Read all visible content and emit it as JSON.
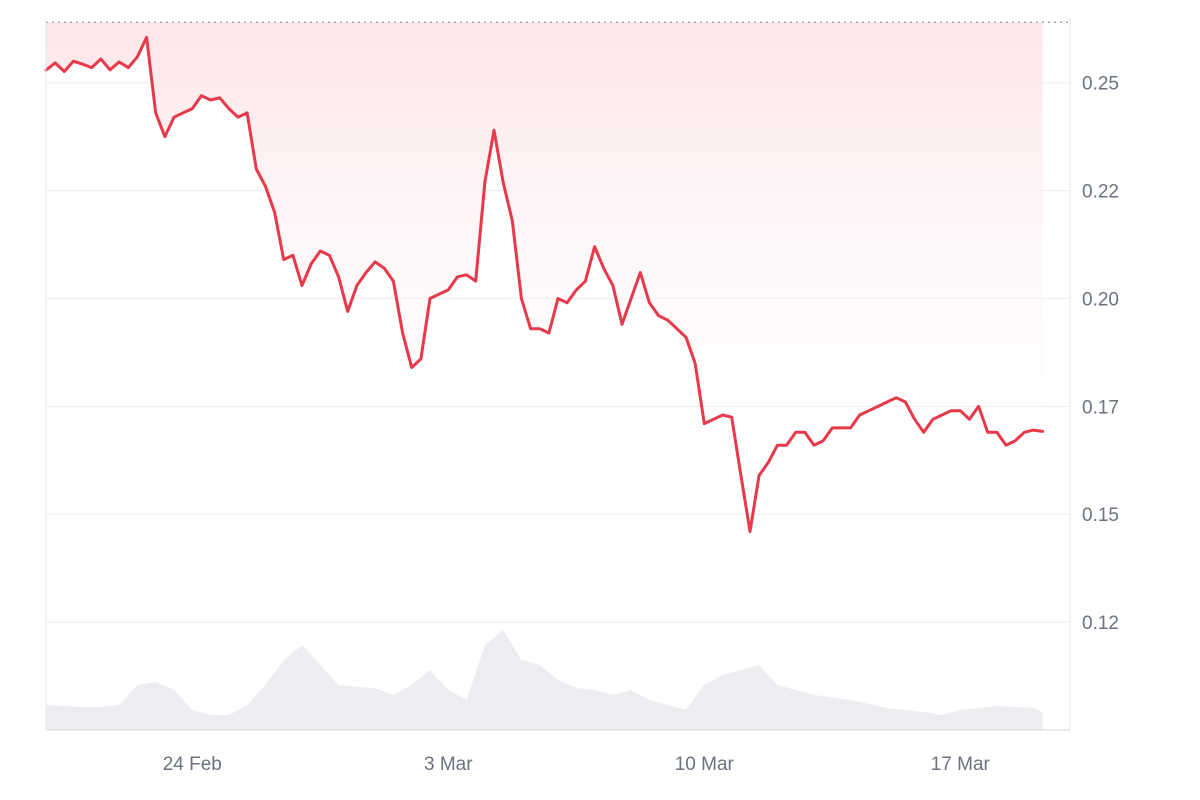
{
  "chart_data": {
    "type": "line",
    "title": "",
    "xlabel": "",
    "ylabel": "",
    "x_ticks": [
      "24 Feb",
      "3 Mar",
      "10 Mar",
      "17 Mar"
    ],
    "y_ticks": [
      "0.25",
      "0.22",
      "0.20",
      "0.17",
      "0.15",
      "0.12"
    ],
    "y_tick_values": [
      0.25,
      0.225,
      0.2,
      0.175,
      0.15,
      0.125
    ],
    "ylim": [
      0.1,
      0.265
    ],
    "xlim": [
      "2025-02-20",
      "2025-03-20"
    ],
    "grid": true,
    "reference_line": 0.264,
    "colors": {
      "line": "#e8394a",
      "fill": "#fde4e7",
      "volume": "#e5e7eb",
      "grid": "#eceef1"
    },
    "series": [
      {
        "values": [
          [
            "2025-02-20T00:00",
            0.2529
          ],
          [
            "2025-02-20T06:00",
            0.2546
          ],
          [
            "2025-02-20T12:00",
            0.2526
          ],
          [
            "2025-02-20T18:00",
            0.255
          ],
          [
            "2025-02-21T00:00",
            0.2543
          ],
          [
            "2025-02-21T06:00",
            0.2535
          ],
          [
            "2025-02-21T12:00",
            0.2555
          ],
          [
            "2025-02-21T18:00",
            0.253
          ],
          [
            "2025-02-22T00:00",
            0.2548
          ],
          [
            "2025-02-22T06:00",
            0.2535
          ],
          [
            "2025-02-22T12:00",
            0.256
          ],
          [
            "2025-02-22T18:00",
            0.2605
          ],
          [
            "2025-02-23T00:00",
            0.243
          ],
          [
            "2025-02-23T06:00",
            0.2375
          ],
          [
            "2025-02-23T12:00",
            0.242
          ],
          [
            "2025-02-23T18:00",
            0.243
          ],
          [
            "2025-02-24T00:00",
            0.244
          ],
          [
            "2025-02-24T06:00",
            0.247
          ],
          [
            "2025-02-24T12:00",
            0.246
          ],
          [
            "2025-02-24T18:00",
            0.2465
          ],
          [
            "2025-02-25T00:00",
            0.244
          ],
          [
            "2025-02-25T06:00",
            0.242
          ],
          [
            "2025-02-25T12:00",
            0.243
          ],
          [
            "2025-02-25T18:00",
            0.23
          ],
          [
            "2025-02-26T00:00",
            0.226
          ],
          [
            "2025-02-26T06:00",
            0.22
          ],
          [
            "2025-02-26T12:00",
            0.209
          ],
          [
            "2025-02-26T18:00",
            0.21
          ],
          [
            "2025-02-27T00:00",
            0.203
          ],
          [
            "2025-02-27T06:00",
            0.208
          ],
          [
            "2025-02-27T12:00",
            0.211
          ],
          [
            "2025-02-27T18:00",
            0.21
          ],
          [
            "2025-02-28T00:00",
            0.205
          ],
          [
            "2025-02-28T06:00",
            0.197
          ],
          [
            "2025-02-28T12:00",
            0.203
          ],
          [
            "2025-02-28T18:00",
            0.206
          ],
          [
            "2025-03-01T00:00",
            0.2085
          ],
          [
            "2025-03-01T06:00",
            0.207
          ],
          [
            "2025-03-01T12:00",
            0.204
          ],
          [
            "2025-03-01T18:00",
            0.192
          ],
          [
            "2025-03-02T00:00",
            0.184
          ],
          [
            "2025-03-02T06:00",
            0.186
          ],
          [
            "2025-03-02T12:00",
            0.2
          ],
          [
            "2025-03-02T18:00",
            0.201
          ],
          [
            "2025-03-03T00:00",
            0.202
          ],
          [
            "2025-03-03T06:00",
            0.205
          ],
          [
            "2025-03-03T12:00",
            0.2055
          ],
          [
            "2025-03-03T18:00",
            0.204
          ],
          [
            "2025-03-04T00:00",
            0.227
          ],
          [
            "2025-03-04T06:00",
            0.239
          ],
          [
            "2025-03-04T12:00",
            0.227
          ],
          [
            "2025-03-04T18:00",
            0.218
          ],
          [
            "2025-03-05T00:00",
            0.2
          ],
          [
            "2025-03-05T06:00",
            0.193
          ],
          [
            "2025-03-05T12:00",
            0.193
          ],
          [
            "2025-03-05T18:00",
            0.192
          ],
          [
            "2025-03-06T00:00",
            0.2
          ],
          [
            "2025-03-06T06:00",
            0.199
          ],
          [
            "2025-03-06T12:00",
            0.202
          ],
          [
            "2025-03-06T18:00",
            0.204
          ],
          [
            "2025-03-07T00:00",
            0.212
          ],
          [
            "2025-03-07T06:00",
            0.207
          ],
          [
            "2025-03-07T12:00",
            0.203
          ],
          [
            "2025-03-07T18:00",
            0.194
          ],
          [
            "2025-03-08T00:00",
            0.2
          ],
          [
            "2025-03-08T06:00",
            0.206
          ],
          [
            "2025-03-08T12:00",
            0.199
          ],
          [
            "2025-03-08T18:00",
            0.196
          ],
          [
            "2025-03-09T00:00",
            0.195
          ],
          [
            "2025-03-09T06:00",
            0.193
          ],
          [
            "2025-03-09T12:00",
            0.191
          ],
          [
            "2025-03-09T18:00",
            0.185
          ],
          [
            "2025-03-10T00:00",
            0.171
          ],
          [
            "2025-03-10T06:00",
            0.172
          ],
          [
            "2025-03-10T12:00",
            0.173
          ],
          [
            "2025-03-10T18:00",
            0.1725
          ],
          [
            "2025-03-11T00:00",
            0.159
          ],
          [
            "2025-03-11T06:00",
            0.146
          ],
          [
            "2025-03-11T12:00",
            0.159
          ],
          [
            "2025-03-11T18:00",
            0.162
          ],
          [
            "2025-03-12T00:00",
            0.166
          ],
          [
            "2025-03-12T06:00",
            0.166
          ],
          [
            "2025-03-12T12:00",
            0.169
          ],
          [
            "2025-03-12T18:00",
            0.169
          ],
          [
            "2025-03-13T00:00",
            0.166
          ],
          [
            "2025-03-13T06:00",
            0.167
          ],
          [
            "2025-03-13T12:00",
            0.17
          ],
          [
            "2025-03-13T18:00",
            0.17
          ],
          [
            "2025-03-14T00:00",
            0.17
          ],
          [
            "2025-03-14T06:00",
            0.173
          ],
          [
            "2025-03-14T12:00",
            0.174
          ],
          [
            "2025-03-14T18:00",
            0.175
          ],
          [
            "2025-03-15T00:00",
            0.176
          ],
          [
            "2025-03-15T06:00",
            0.177
          ],
          [
            "2025-03-15T12:00",
            0.176
          ],
          [
            "2025-03-15T18:00",
            0.172
          ],
          [
            "2025-03-16T00:00",
            0.169
          ],
          [
            "2025-03-16T06:00",
            0.172
          ],
          [
            "2025-03-16T12:00",
            0.173
          ],
          [
            "2025-03-16T18:00",
            0.174
          ],
          [
            "2025-03-17T00:00",
            0.174
          ],
          [
            "2025-03-17T06:00",
            0.172
          ],
          [
            "2025-03-17T12:00",
            0.175
          ],
          [
            "2025-03-17T18:00",
            0.169
          ],
          [
            "2025-03-18T00:00",
            0.169
          ],
          [
            "2025-03-18T06:00",
            0.166
          ],
          [
            "2025-03-18T12:00",
            0.167
          ],
          [
            "2025-03-18T18:00",
            0.169
          ],
          [
            "2025-03-19T00:00",
            0.1695
          ],
          [
            "2025-03-19T06:00",
            0.1692
          ]
        ]
      }
    ],
    "volume": {
      "range": [
        0,
        1
      ],
      "values": [
        [
          "2025-02-20T00:00",
          0.25
        ],
        [
          "2025-02-21T00:00",
          0.23
        ],
        [
          "2025-02-21T12:00",
          0.23
        ],
        [
          "2025-02-22T00:00",
          0.25
        ],
        [
          "2025-02-22T12:00",
          0.45
        ],
        [
          "2025-02-23T00:00",
          0.48
        ],
        [
          "2025-02-23T12:00",
          0.4
        ],
        [
          "2025-02-24T00:00",
          0.2
        ],
        [
          "2025-02-24T12:00",
          0.15
        ],
        [
          "2025-02-25T00:00",
          0.15
        ],
        [
          "2025-02-25T12:00",
          0.25
        ],
        [
          "2025-02-26T00:00",
          0.45
        ],
        [
          "2025-02-26T12:00",
          0.7
        ],
        [
          "2025-02-27T00:00",
          0.85
        ],
        [
          "2025-02-27T12:00",
          0.65
        ],
        [
          "2025-02-28T00:00",
          0.45
        ],
        [
          "2025-02-28T12:00",
          0.43
        ],
        [
          "2025-03-01T00:00",
          0.42
        ],
        [
          "2025-03-01T12:00",
          0.35
        ],
        [
          "2025-03-02T00:00",
          0.45
        ],
        [
          "2025-03-02T12:00",
          0.6
        ],
        [
          "2025-03-03T00:00",
          0.4
        ],
        [
          "2025-03-03T12:00",
          0.3
        ],
        [
          "2025-03-04T00:00",
          0.85
        ],
        [
          "2025-03-04T12:00",
          1.0
        ],
        [
          "2025-03-05T00:00",
          0.7
        ],
        [
          "2025-03-05T12:00",
          0.65
        ],
        [
          "2025-03-06T00:00",
          0.5
        ],
        [
          "2025-03-06T12:00",
          0.42
        ],
        [
          "2025-03-07T00:00",
          0.4
        ],
        [
          "2025-03-07T12:00",
          0.35
        ],
        [
          "2025-03-08T00:00",
          0.4
        ],
        [
          "2025-03-08T12:00",
          0.3
        ],
        [
          "2025-03-09T00:00",
          0.25
        ],
        [
          "2025-03-09T12:00",
          0.2
        ],
        [
          "2025-03-10T00:00",
          0.45
        ],
        [
          "2025-03-10T12:00",
          0.55
        ],
        [
          "2025-03-11T00:00",
          0.6
        ],
        [
          "2025-03-11T12:00",
          0.65
        ],
        [
          "2025-03-12T00:00",
          0.45
        ],
        [
          "2025-03-12T12:00",
          0.4
        ],
        [
          "2025-03-13T00:00",
          0.35
        ],
        [
          "2025-03-14T00:00",
          0.3
        ],
        [
          "2025-03-15T00:00",
          0.22
        ],
        [
          "2025-03-16T00:00",
          0.18
        ],
        [
          "2025-03-16T12:00",
          0.15
        ],
        [
          "2025-03-17T00:00",
          0.2
        ],
        [
          "2025-03-18T00:00",
          0.24
        ],
        [
          "2025-03-19T00:00",
          0.22
        ],
        [
          "2025-03-19T06:00",
          0.18
        ]
      ]
    }
  }
}
